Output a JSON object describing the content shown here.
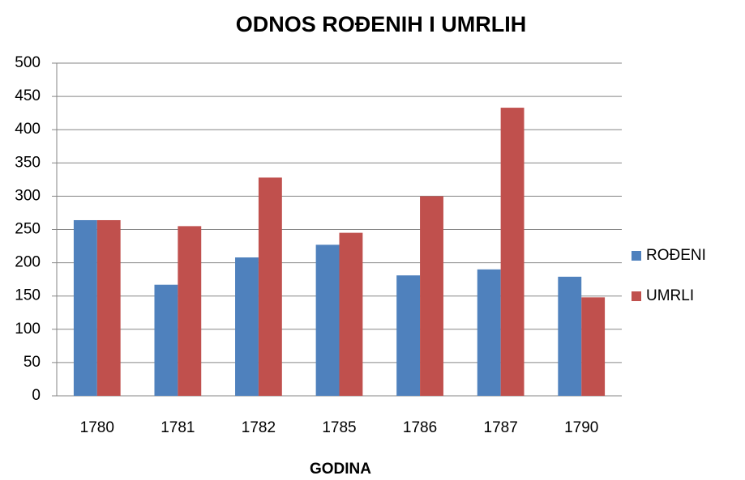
{
  "chart_data": {
    "type": "bar",
    "title": "ODNOS ROĐENIH I UMRLIH",
    "x_label": "GODINA",
    "categories": [
      "1780",
      "1781",
      "1782",
      "1785",
      "1786",
      "1787",
      "1790"
    ],
    "series": [
      {
        "name": "ROĐENI",
        "color": "#4f81bd",
        "values": [
          264,
          167,
          208,
          227,
          181,
          190,
          179
        ]
      },
      {
        "name": "UMRLI",
        "color": "#c0504d",
        "values": [
          264,
          255,
          328,
          245,
          300,
          433,
          148
        ]
      }
    ],
    "ylim": [
      0,
      500
    ],
    "yticks": [
      0,
      50,
      100,
      150,
      200,
      250,
      300,
      350,
      400,
      450,
      500
    ],
    "grid": true,
    "legend": "right"
  }
}
